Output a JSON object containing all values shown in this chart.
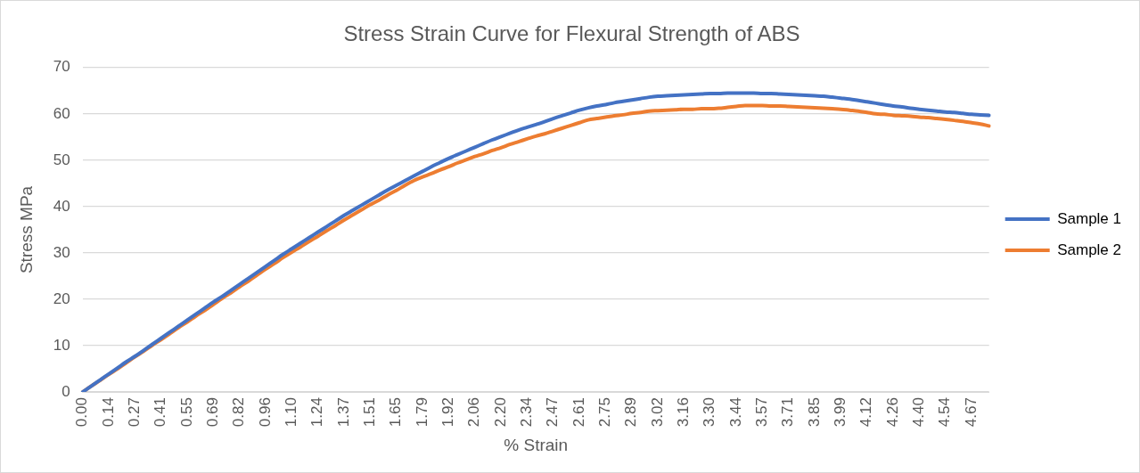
{
  "chart_data": {
    "type": "line",
    "title": "Stress Strain Curve for Flexural Strength of ABS",
    "xlabel": "% Strain",
    "ylabel": "Stress MPa",
    "categories": [
      "0.00",
      null,
      null,
      "0.14",
      null,
      null,
      "0.27",
      null,
      null,
      "0.41",
      null,
      null,
      "0.55",
      null,
      null,
      "0.69",
      null,
      null,
      "0.82",
      null,
      null,
      "0.96",
      null,
      null,
      "1.10",
      null,
      null,
      "1.24",
      null,
      null,
      "1.37",
      null,
      null,
      "1.51",
      null,
      null,
      "1.65",
      null,
      null,
      "1.79",
      null,
      null,
      "1.92",
      null,
      null,
      "2.06",
      null,
      null,
      "2.20",
      null,
      null,
      "2.34",
      null,
      null,
      "2.47",
      null,
      null,
      "2.61",
      null,
      null,
      "2.75",
      null,
      null,
      "2.89",
      null,
      null,
      "3.02",
      null,
      null,
      "3.16",
      null,
      null,
      "3.30",
      null,
      null,
      "3.44",
      null,
      null,
      "3.57",
      null,
      null,
      "3.71",
      null,
      null,
      "3.85",
      null,
      null,
      "3.99",
      null,
      null,
      "4.12",
      null,
      null,
      "4.26",
      null,
      null,
      "4.40",
      null,
      null,
      "4.54",
      null,
      null,
      "4.67",
      null,
      null
    ],
    "series": [
      {
        "name": "Sample 1",
        "color": "#4472c4",
        "values": [
          0,
          1.3,
          2.6,
          3.9,
          5.2,
          6.5,
          7.7,
          9.0,
          10.3,
          11.6,
          12.9,
          14.2,
          15.5,
          16.8,
          18.1,
          19.4,
          20.6,
          21.9,
          23.2,
          24.5,
          25.8,
          27.1,
          28.4,
          29.7,
          30.9,
          32.1,
          33.3,
          34.5,
          35.7,
          36.9,
          38.1,
          39.2,
          40.3,
          41.4,
          42.5,
          43.6,
          44.6,
          45.6,
          46.6,
          47.6,
          48.6,
          49.5,
          50.4,
          51.2,
          52.0,
          52.8,
          53.6,
          54.4,
          55.1,
          55.8,
          56.5,
          57.1,
          57.7,
          58.3,
          59.0,
          59.6,
          60.2,
          60.8,
          61.3,
          61.7,
          62.0,
          62.4,
          62.7,
          63.0,
          63.3,
          63.6,
          63.8,
          63.9,
          64.0,
          64.1,
          64.2,
          64.3,
          64.4,
          64.4,
          64.5,
          64.5,
          64.5,
          64.5,
          64.4,
          64.4,
          64.3,
          64.2,
          64.1,
          64.0,
          63.9,
          63.8,
          63.6,
          63.4,
          63.2,
          62.9,
          62.6,
          62.3,
          62.0,
          61.7,
          61.5,
          61.2,
          61.0,
          60.8,
          60.6,
          60.4,
          60.3,
          60.1,
          59.9,
          59.8,
          59.7
        ]
      },
      {
        "name": "Sample 2",
        "color": "#ed7d31",
        "values": [
          0,
          1.3,
          2.5,
          3.8,
          5.0,
          6.3,
          7.6,
          8.8,
          10.1,
          11.3,
          12.6,
          13.9,
          15.1,
          16.4,
          17.6,
          18.9,
          20.2,
          21.4,
          22.7,
          23.9,
          25.2,
          26.5,
          27.7,
          29.0,
          30.2,
          31.3,
          32.5,
          33.6,
          34.8,
          35.9,
          37.1,
          38.2,
          39.3,
          40.4,
          41.4,
          42.5,
          43.5,
          44.6,
          45.6,
          46.4,
          47.1,
          47.9,
          48.6,
          49.4,
          50.1,
          50.8,
          51.4,
          52.1,
          52.7,
          53.4,
          54.0,
          54.6,
          55.2,
          55.7,
          56.3,
          56.9,
          57.5,
          58.1,
          58.7,
          59.0,
          59.3,
          59.6,
          59.8,
          60.1,
          60.3,
          60.6,
          60.7,
          60.8,
          60.9,
          61.0,
          61.0,
          61.1,
          61.1,
          61.2,
          61.4,
          61.6,
          61.8,
          61.8,
          61.8,
          61.7,
          61.7,
          61.6,
          61.5,
          61.4,
          61.3,
          61.2,
          61.1,
          61.0,
          60.8,
          60.6,
          60.3,
          60.0,
          59.9,
          59.7,
          59.6,
          59.5,
          59.3,
          59.2,
          59.0,
          58.8,
          58.6,
          58.4,
          58.1,
          57.8,
          57.4
        ]
      }
    ],
    "ylim": [
      0,
      70
    ],
    "yticks": [
      0,
      10,
      20,
      30,
      40,
      50,
      60,
      70
    ],
    "grid": "y",
    "legend": "right",
    "marker": "none",
    "line_style": "solid"
  }
}
